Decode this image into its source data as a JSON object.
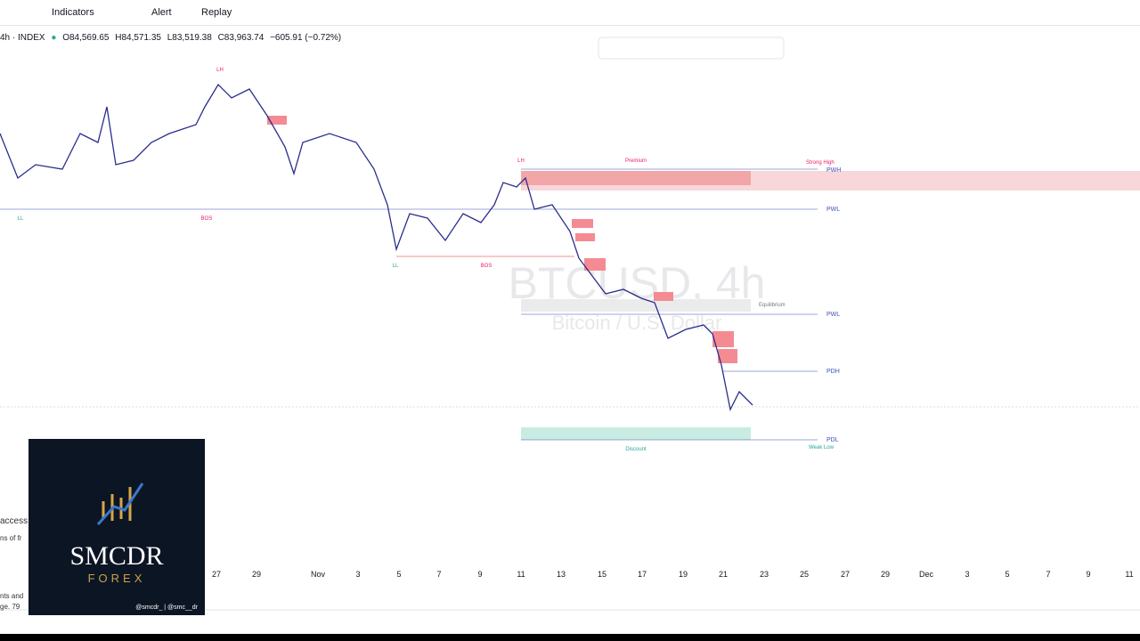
{
  "toolbar": {
    "buttons": [
      "Indicators",
      "Alert",
      "Replay"
    ]
  },
  "header": {
    "symbol": "4h · INDEX",
    "ohlc": [
      "O84,569.65",
      "H84,571.35",
      "L83,519.38",
      "C83,963.74",
      "−605.91 (−0.72%)"
    ]
  },
  "watermark": {
    "title": "BTCUSD, 4h",
    "subtitle": "Bitcoin / U.S. Dollar"
  },
  "annotations": {
    "lh": [
      "LH",
      "LH"
    ],
    "ll": [
      "LL",
      "LL"
    ],
    "bos": [
      "BOS",
      "BOS"
    ],
    "premium": "Premium",
    "discount": "Discount",
    "equilibrium": "Equilibrium",
    "strong_high": "Strong High",
    "weak_low": "Weak Low",
    "levels": [
      "PWH",
      "PWL",
      "PWL",
      "PDH",
      "PDL"
    ]
  },
  "x_axis": [
    "27",
    "29",
    "Nov",
    "3",
    "5",
    "7",
    "9",
    "11",
    "13",
    "15",
    "17",
    "19",
    "21",
    "23",
    "25",
    "27",
    "29",
    "Dec",
    "3",
    "5",
    "7",
    "9",
    "11"
  ],
  "side_text": [
    "access",
    "ns of fr",
    "nts and",
    "ge. 79"
  ],
  "logo": {
    "name": "SMCDR",
    "tagline": "FOREX",
    "handles": "@smcdr_ | @smc__dr"
  }
}
